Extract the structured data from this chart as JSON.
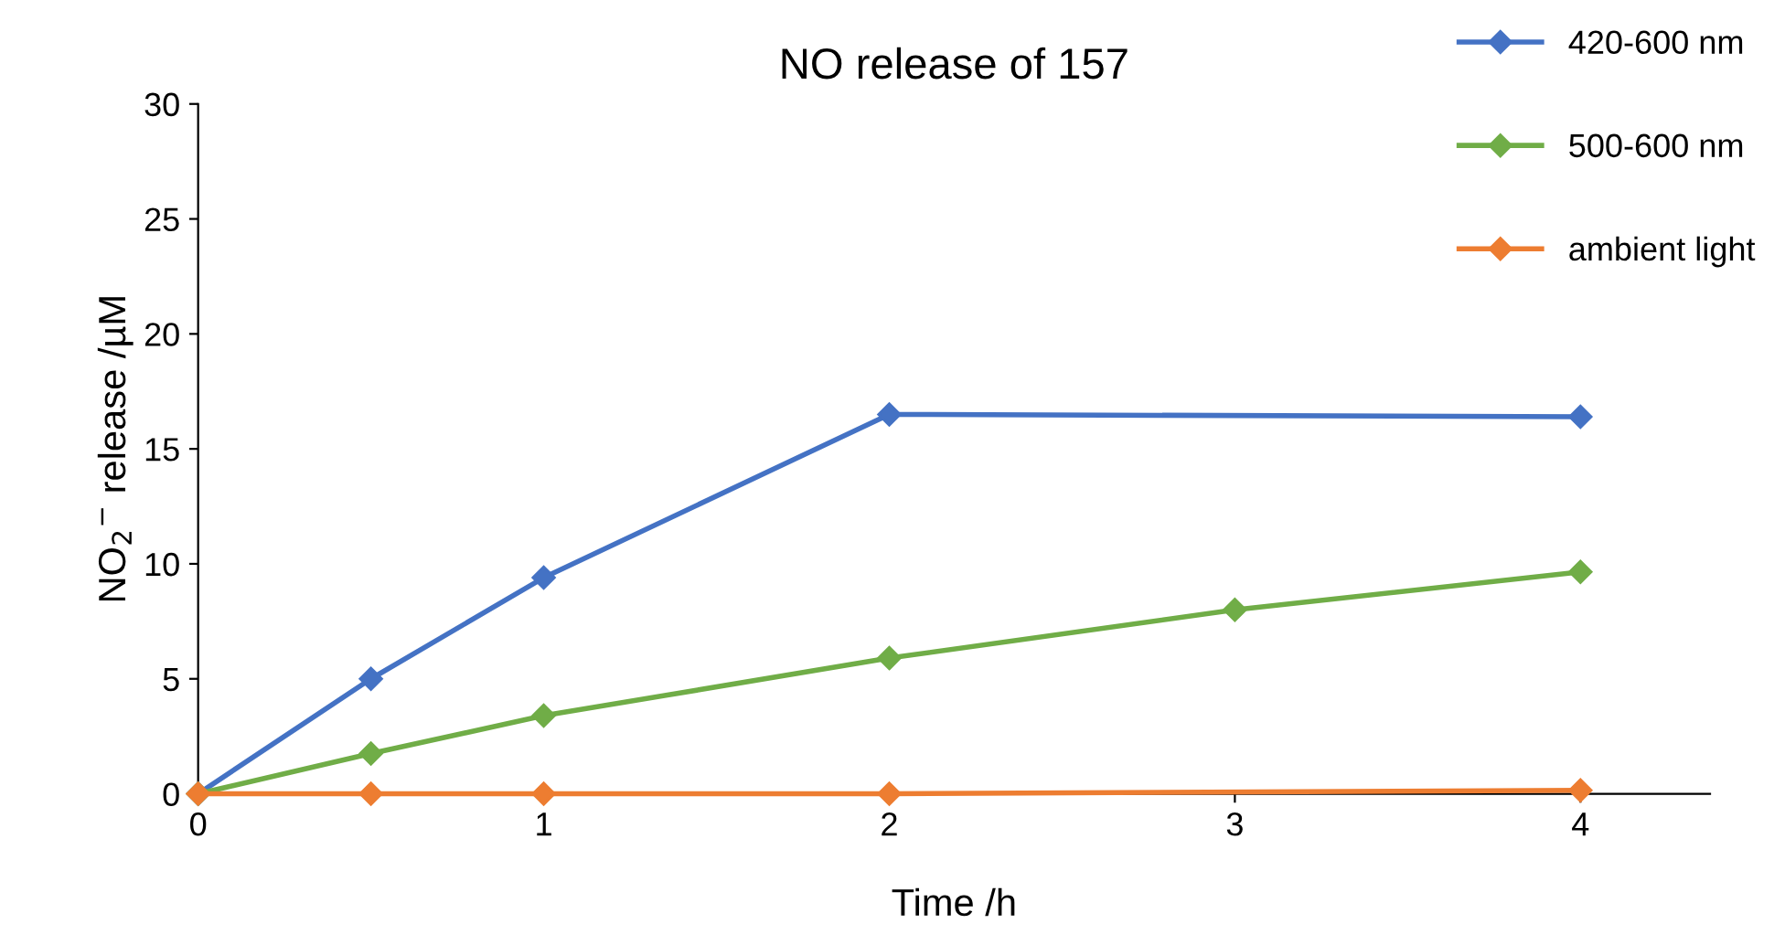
{
  "chart_data": {
    "type": "line",
    "title": "NO release of 157",
    "xlabel": "Time /h",
    "ylabel": "NO$_{2}$$^{−}$ release /µM",
    "xlim": [
      0,
      4.375
    ],
    "xticks": [
      0,
      1,
      2,
      3,
      4
    ],
    "ylim": [
      0,
      30
    ],
    "yticks": [
      0,
      5,
      10,
      15,
      20,
      25,
      30
    ],
    "grid": false,
    "legend": "top right",
    "marker": "diamond",
    "line_style": "solid",
    "series": [
      {
        "name": "420-600 nm",
        "color": "#4472c4",
        "x": [
          0,
          0.5,
          1,
          2,
          4
        ],
        "values": [
          0,
          5,
          9.4,
          16.5,
          16.4
        ]
      },
      {
        "name": "500-600 nm",
        "color": "#70ad47",
        "x": [
          0,
          0.5,
          1,
          2,
          3,
          4
        ],
        "values": [
          0,
          1.75,
          3.4,
          5.9,
          8,
          9.65
        ]
      },
      {
        "name": "ambient light",
        "color": "#ed7d31",
        "x": [
          0,
          0.5,
          1,
          2,
          4
        ],
        "values": [
          0,
          0,
          0,
          0,
          0.15
        ]
      }
    ]
  }
}
